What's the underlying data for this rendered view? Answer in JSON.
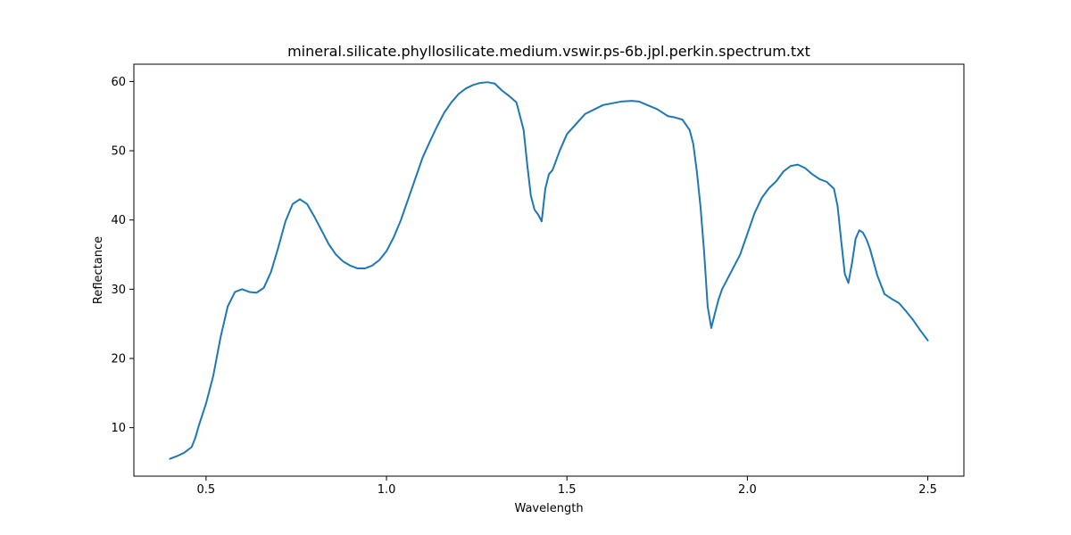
{
  "chart_data": {
    "type": "line",
    "title": "mineral.silicate.phyllosilicate.medium.vswir.ps-6b.jpl.perkin.spectrum.txt",
    "xlabel": "Wavelength",
    "ylabel": "Reflectance",
    "xlim": [
      0.3,
      2.6
    ],
    "ylim": [
      3.0,
      62.5
    ],
    "xticks": [
      0.5,
      1.0,
      1.5,
      2.0,
      2.5
    ],
    "xtick_labels": [
      "0.5",
      "1.0",
      "1.5",
      "2.0",
      "2.5"
    ],
    "yticks": [
      10,
      20,
      30,
      40,
      50,
      60
    ],
    "ytick_labels": [
      "10",
      "20",
      "30",
      "40",
      "50",
      "60"
    ],
    "grid": false,
    "legend": "none",
    "series": [
      {
        "color": "#1f77b4",
        "x": [
          0.4,
          0.42,
          0.44,
          0.46,
          0.47,
          0.48,
          0.5,
          0.52,
          0.54,
          0.56,
          0.58,
          0.6,
          0.62,
          0.64,
          0.66,
          0.68,
          0.7,
          0.72,
          0.74,
          0.76,
          0.78,
          0.8,
          0.82,
          0.84,
          0.86,
          0.88,
          0.9,
          0.92,
          0.94,
          0.96,
          0.98,
          1.0,
          1.02,
          1.04,
          1.06,
          1.08,
          1.1,
          1.12,
          1.14,
          1.16,
          1.18,
          1.2,
          1.22,
          1.24,
          1.26,
          1.28,
          1.3,
          1.32,
          1.34,
          1.36,
          1.38,
          1.39,
          1.4,
          1.41,
          1.42,
          1.43,
          1.44,
          1.45,
          1.46,
          1.48,
          1.5,
          1.55,
          1.6,
          1.65,
          1.68,
          1.7,
          1.75,
          1.78,
          1.8,
          1.82,
          1.84,
          1.85,
          1.86,
          1.87,
          1.88,
          1.89,
          1.9,
          1.91,
          1.92,
          1.93,
          1.95,
          1.98,
          2.0,
          2.02,
          2.04,
          2.06,
          2.08,
          2.1,
          2.12,
          2.14,
          2.16,
          2.18,
          2.2,
          2.22,
          2.24,
          2.25,
          2.26,
          2.27,
          2.28,
          2.29,
          2.3,
          2.31,
          2.32,
          2.33,
          2.34,
          2.36,
          2.38,
          2.4,
          2.42,
          2.44,
          2.46,
          2.48,
          2.5
        ],
        "y": [
          5.5,
          5.9,
          6.4,
          7.2,
          8.5,
          10.3,
          13.5,
          17.5,
          23.0,
          27.5,
          29.6,
          30.0,
          29.6,
          29.5,
          30.2,
          32.5,
          36.0,
          39.8,
          42.3,
          43.0,
          42.3,
          40.5,
          38.5,
          36.5,
          35.0,
          34.0,
          33.4,
          33.0,
          33.0,
          33.4,
          34.2,
          35.5,
          37.5,
          40.0,
          43.0,
          46.0,
          49.0,
          51.3,
          53.5,
          55.5,
          57.0,
          58.2,
          59.0,
          59.5,
          59.8,
          59.9,
          59.7,
          58.7,
          57.9,
          57.0,
          53.0,
          48.0,
          43.5,
          41.5,
          40.8,
          39.8,
          44.5,
          46.6,
          47.2,
          50.0,
          52.4,
          55.3,
          56.6,
          57.1,
          57.2,
          57.1,
          56.0,
          55.0,
          54.8,
          54.5,
          53.0,
          51.0,
          47.0,
          42.0,
          35.5,
          27.5,
          24.4,
          26.5,
          28.5,
          30.0,
          32.0,
          35.0,
          38.0,
          41.0,
          43.2,
          44.6,
          45.6,
          47.0,
          47.8,
          48.0,
          47.5,
          46.6,
          45.9,
          45.5,
          44.5,
          42.0,
          37.0,
          32.2,
          30.9,
          33.8,
          37.3,
          38.5,
          38.2,
          37.2,
          35.8,
          32.0,
          29.3,
          28.6,
          28.0,
          26.8,
          25.5,
          24.0,
          22.6
        ]
      }
    ]
  }
}
